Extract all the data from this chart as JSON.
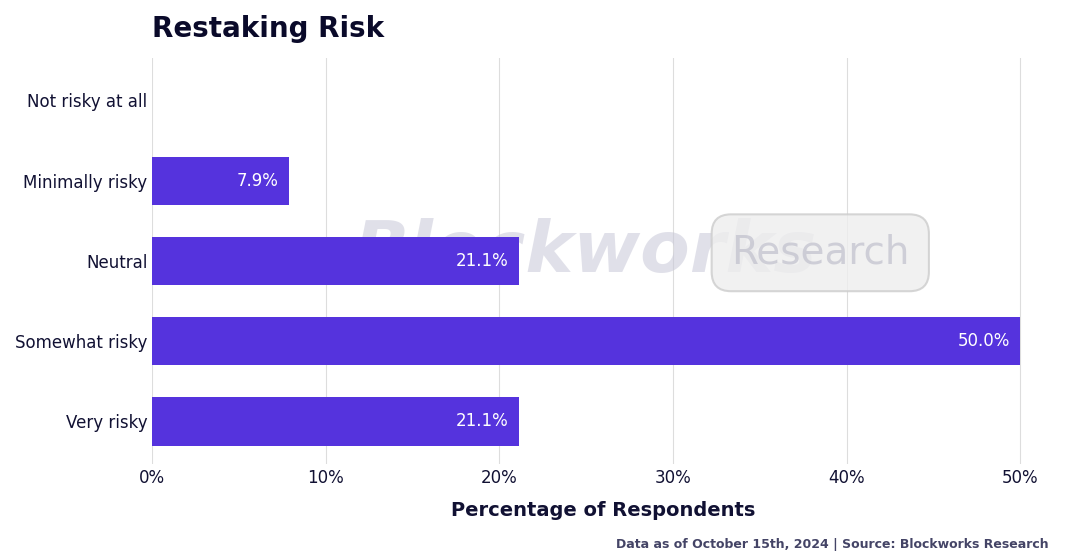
{
  "title": "Restaking Risk",
  "categories": [
    "Not risky at all",
    "Minimally risky",
    "Neutral",
    "Somewhat risky",
    "Very risky"
  ],
  "values": [
    0.0,
    7.9,
    21.1,
    50.0,
    21.1
  ],
  "bar_color": "#5533dd",
  "xlabel": "Percentage of Respondents",
  "xlim": [
    0,
    52
  ],
  "xticks": [
    0,
    10,
    20,
    30,
    40,
    50
  ],
  "xticklabels": [
    "0%",
    "10%",
    "20%",
    "30%",
    "40%",
    "50%"
  ],
  "background_color": "#ffffff",
  "title_color": "#0a0a2a",
  "label_color": "#111133",
  "grid_color": "#dddddd",
  "footer_text": "Data as of October 15th, 2024 | Source: Blockworks Research",
  "title_fontsize": 20,
  "label_fontsize": 12,
  "bar_label_fontsize": 12,
  "footer_fontsize": 9
}
